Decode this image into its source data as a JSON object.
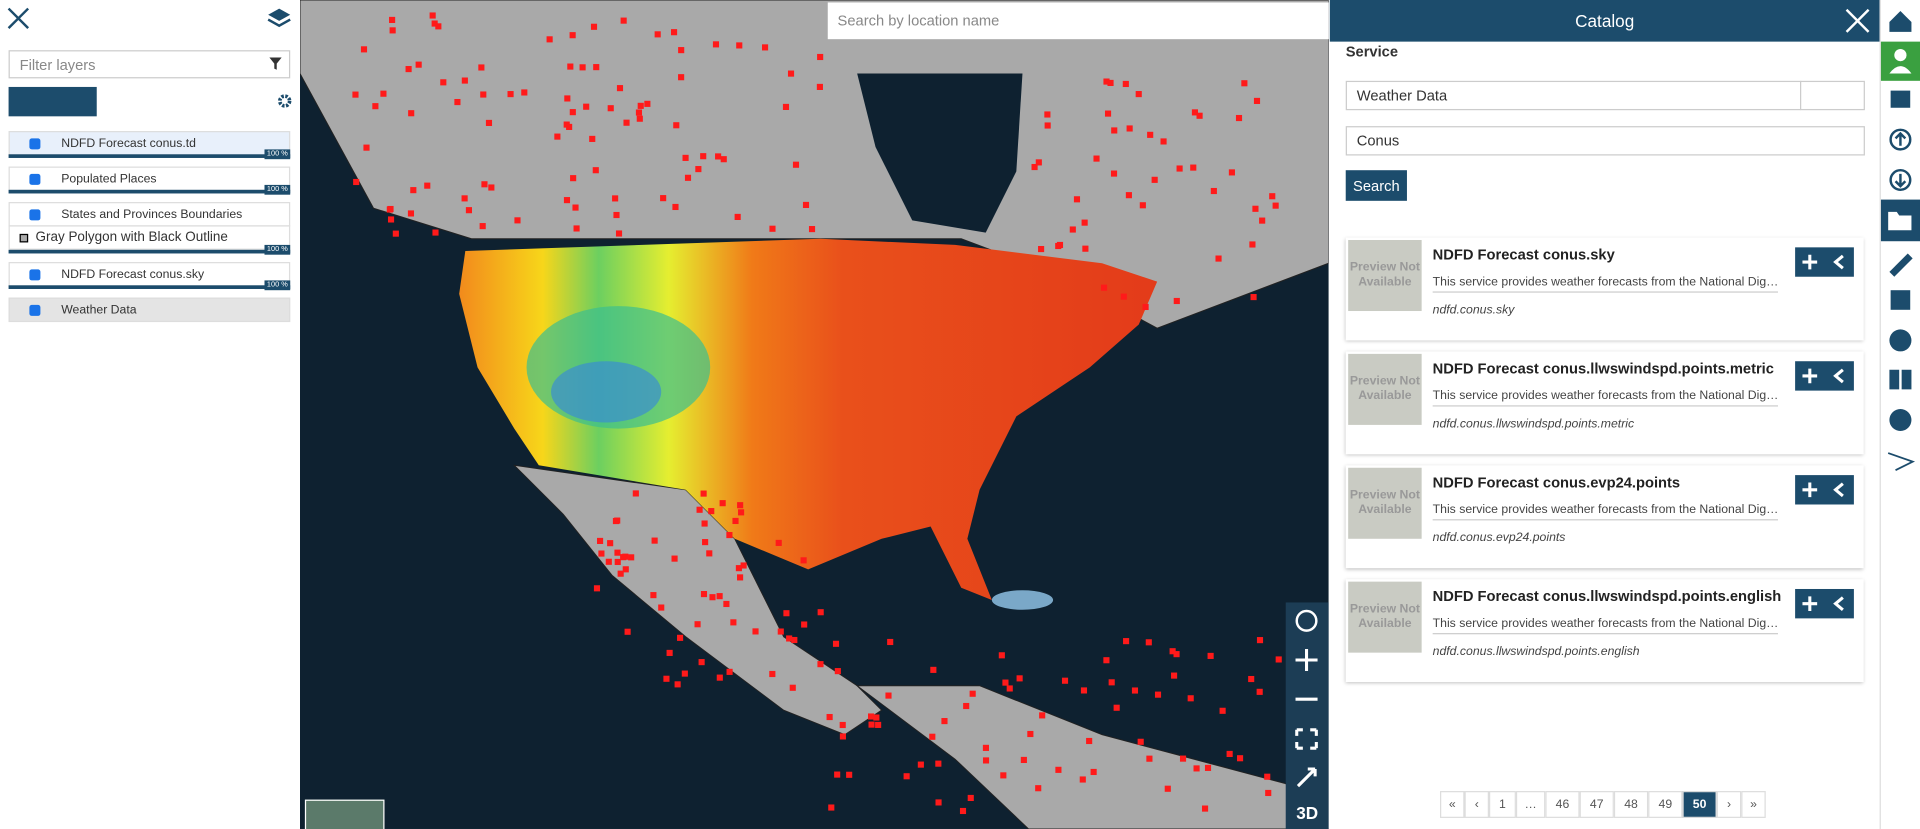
{
  "left_panel": {
    "filter_placeholder": "Filter layers",
    "layers": [
      {
        "title": "NDFD Forecast conus.td",
        "opacity_label": "100 %"
      },
      {
        "title": "Populated Places",
        "opacity_label": "100 %"
      },
      {
        "title": "States and Provinces Boundaries",
        "legend": "Gray Polygon with Black Outline",
        "opacity_label": "100 %"
      },
      {
        "title": "NDFD Forecast conus.sky",
        "opacity_label": "100 %"
      },
      {
        "title": "Weather Data"
      }
    ]
  },
  "map": {
    "search_placeholder": "Search by location name",
    "view_toggle": "3D"
  },
  "catalog": {
    "title": "Catalog",
    "service_label": "Service",
    "service": "Weather Data",
    "search_text": "Conus",
    "search_button": "Search",
    "items": [
      {
        "thumbnail": "Preview Not Available",
        "title": "NDFD Forecast conus.sky",
        "description": "This service provides weather forecasts from the National Dig…",
        "name": "ndfd.conus.sky"
      },
      {
        "thumbnail": "Preview Not Available",
        "title": "NDFD Forecast conus.llwswindspd.points.metric",
        "description": "This service provides weather forecasts from the National Dig…",
        "name": "ndfd.conus.llwswindspd.points.metric"
      },
      {
        "thumbnail": "Preview Not Available",
        "title": "NDFD Forecast conus.evp24.points",
        "description": "This service provides weather forecasts from the National Dig…",
        "name": "ndfd.conus.evp24.points"
      },
      {
        "thumbnail": "Preview Not Available",
        "title": "NDFD Forecast conus.llwswindspd.points.english",
        "description": "This service provides weather forecasts from the National Dig…",
        "name": "ndfd.conus.llwswindspd.points.english"
      }
    ],
    "pagination": {
      "pages": [
        "«",
        "‹",
        "1",
        "…",
        "46",
        "47",
        "48",
        "49",
        "50",
        "›",
        "»"
      ],
      "current_page": "50"
    }
  }
}
